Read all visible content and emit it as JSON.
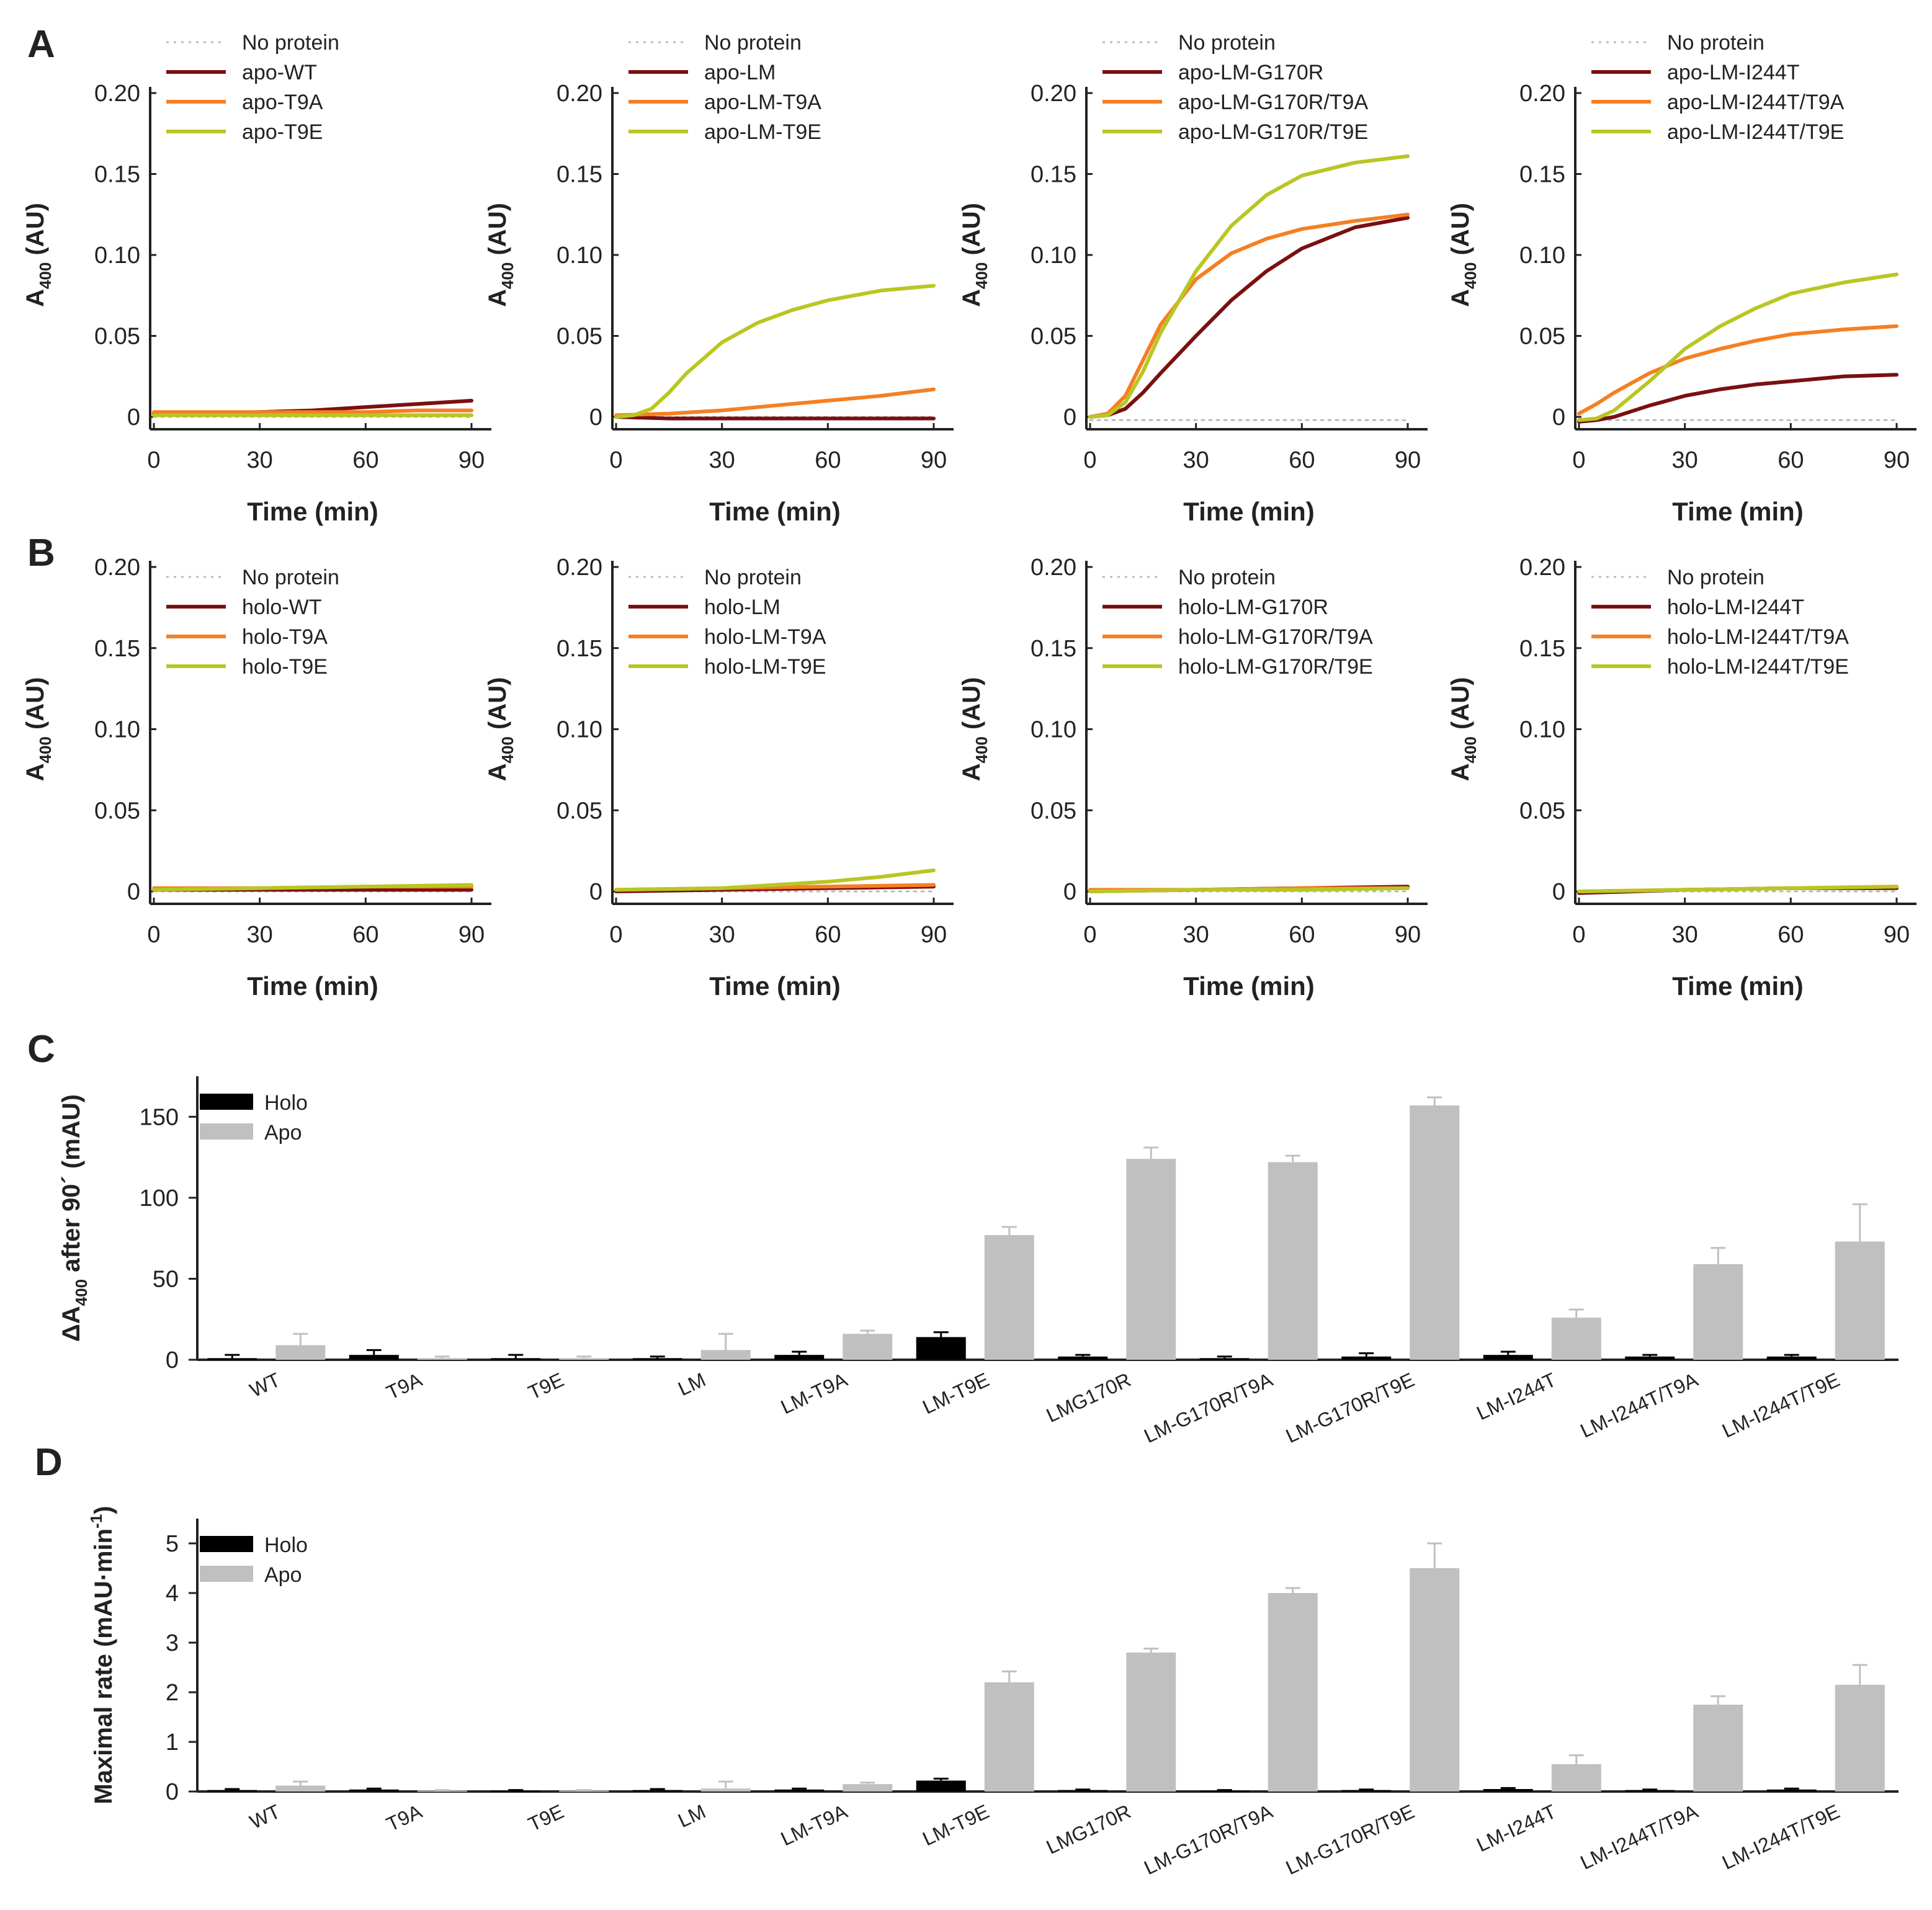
{
  "colors": {
    "no_protein": "#bbbbbb",
    "wt": "#7a1010",
    "t9a": "#f57f22",
    "t9e": "#b9c623",
    "holo": "#000000",
    "apo": "#c0c0c0",
    "axis": "#222222"
  },
  "chart_data": [
    {
      "type": "line",
      "panel": "A",
      "title": "",
      "xlabel": "Time (min)",
      "ylabel": "A400 (AU)",
      "xlim": [
        0,
        90
      ],
      "ylim": [
        0,
        0.2
      ],
      "xticks": [
        0,
        30,
        60,
        90
      ],
      "yticks": [
        {
          "v": 0,
          "label": "0"
        },
        {
          "v": 0.05,
          "label": "0.05"
        },
        {
          "v": 0.1,
          "label": "0.10"
        },
        {
          "v": 0.15,
          "label": "0.15"
        },
        {
          "v": 0.2,
          "label": "0.20"
        }
      ],
      "series": [
        {
          "name": "No protein",
          "x": [
            0,
            90
          ],
          "y": [
            0,
            0
          ]
        },
        {
          "name": "apo-WT",
          "x": [
            0,
            15,
            30,
            45,
            60,
            75,
            90
          ],
          "y": [
            0.002,
            0.002,
            0.003,
            0.004,
            0.006,
            0.008,
            0.01
          ]
        },
        {
          "name": "apo-T9A",
          "x": [
            0,
            15,
            30,
            45,
            60,
            75,
            90
          ],
          "y": [
            0.003,
            0.003,
            0.003,
            0.003,
            0.003,
            0.004,
            0.004
          ]
        },
        {
          "name": "apo-T9E",
          "x": [
            0,
            15,
            30,
            45,
            60,
            75,
            90
          ],
          "y": [
            0.001,
            0.001,
            0.001,
            0.001,
            0.001,
            0.001,
            0.001
          ]
        }
      ]
    },
    {
      "type": "line",
      "panel": "A",
      "title": "",
      "xlabel": "Time (min)",
      "ylabel": "A400 (AU)",
      "xlim": [
        0,
        90
      ],
      "ylim": [
        0,
        0.2
      ],
      "xticks": [
        0,
        30,
        60,
        90
      ],
      "yticks": [
        {
          "v": 0,
          "label": "0"
        },
        {
          "v": 0.05,
          "label": "0.05"
        },
        {
          "v": 0.1,
          "label": "0.10"
        },
        {
          "v": 0.15,
          "label": "0.15"
        },
        {
          "v": 0.2,
          "label": "0.20"
        }
      ],
      "series": [
        {
          "name": "No protein",
          "x": [
            0,
            90
          ],
          "y": [
            0,
            0
          ]
        },
        {
          "name": "apo-LM",
          "x": [
            0,
            15,
            30,
            45,
            60,
            75,
            90
          ],
          "y": [
            0,
            -0.001,
            -0.001,
            -0.001,
            -0.001,
            -0.001,
            -0.001
          ]
        },
        {
          "name": "apo-LM-T9A",
          "x": [
            0,
            15,
            30,
            45,
            60,
            75,
            90
          ],
          "y": [
            0.001,
            0.002,
            0.004,
            0.007,
            0.01,
            0.013,
            0.017
          ]
        },
        {
          "name": "apo-LM-T9E",
          "x": [
            0,
            5,
            10,
            15,
            20,
            30,
            40,
            50,
            60,
            75,
            90
          ],
          "y": [
            0,
            0.001,
            0.005,
            0.015,
            0.027,
            0.046,
            0.058,
            0.066,
            0.072,
            0.078,
            0.081
          ]
        }
      ]
    },
    {
      "type": "line",
      "panel": "A",
      "title": "",
      "xlabel": "Time (min)",
      "ylabel": "A400 (AU)",
      "xlim": [
        0,
        90
      ],
      "ylim": [
        0,
        0.2
      ],
      "xticks": [
        0,
        30,
        60,
        90
      ],
      "yticks": [
        {
          "v": 0,
          "label": "0"
        },
        {
          "v": 0.05,
          "label": "0.05"
        },
        {
          "v": 0.1,
          "label": "0.10"
        },
        {
          "v": 0.15,
          "label": "0.15"
        },
        {
          "v": 0.2,
          "label": "0.20"
        }
      ],
      "series": [
        {
          "name": "No protein",
          "x": [
            0,
            90
          ],
          "y": [
            -0.002,
            -0.002
          ]
        },
        {
          "name": "apo-LM-G170R",
          "x": [
            0,
            5,
            10,
            15,
            20,
            30,
            40,
            50,
            60,
            75,
            90
          ],
          "y": [
            0,
            0.001,
            0.005,
            0.015,
            0.027,
            0.05,
            0.072,
            0.09,
            0.104,
            0.117,
            0.123
          ]
        },
        {
          "name": "apo-LM-G170R/T9A",
          "x": [
            0,
            5,
            10,
            15,
            20,
            30,
            40,
            50,
            60,
            75,
            90
          ],
          "y": [
            0,
            0.002,
            0.013,
            0.035,
            0.057,
            0.085,
            0.101,
            0.11,
            0.116,
            0.121,
            0.125
          ]
        },
        {
          "name": "apo-LM-G170R/T9E",
          "x": [
            0,
            5,
            10,
            15,
            20,
            30,
            40,
            50,
            60,
            75,
            90
          ],
          "y": [
            0,
            0.001,
            0.009,
            0.028,
            0.052,
            0.09,
            0.118,
            0.137,
            0.149,
            0.157,
            0.161
          ]
        }
      ]
    },
    {
      "type": "line",
      "panel": "A",
      "title": "",
      "xlabel": "Time (min)",
      "ylabel": "A400 (AU)",
      "xlim": [
        0,
        90
      ],
      "ylim": [
        0,
        0.2
      ],
      "xticks": [
        0,
        30,
        60,
        90
      ],
      "yticks": [
        {
          "v": 0,
          "label": "0"
        },
        {
          "v": 0.05,
          "label": "0.05"
        },
        {
          "v": 0.1,
          "label": "0.10"
        },
        {
          "v": 0.15,
          "label": "0.15"
        },
        {
          "v": 0.2,
          "label": "0.20"
        }
      ],
      "series": [
        {
          "name": "No protein",
          "x": [
            0,
            90
          ],
          "y": [
            -0.002,
            -0.002
          ]
        },
        {
          "name": "apo-LM-I244T",
          "x": [
            0,
            5,
            10,
            20,
            30,
            40,
            50,
            60,
            75,
            90
          ],
          "y": [
            -0.003,
            -0.002,
            0,
            0.007,
            0.013,
            0.017,
            0.02,
            0.022,
            0.025,
            0.026
          ]
        },
        {
          "name": "apo-LM-I244T/T9A",
          "x": [
            0,
            5,
            10,
            20,
            30,
            40,
            50,
            60,
            75,
            90
          ],
          "y": [
            0.002,
            0.008,
            0.015,
            0.027,
            0.036,
            0.042,
            0.047,
            0.051,
            0.054,
            0.056
          ]
        },
        {
          "name": "apo-LM-I244T/T9E",
          "x": [
            0,
            5,
            10,
            20,
            30,
            40,
            50,
            60,
            75,
            90
          ],
          "y": [
            -0.002,
            -0.001,
            0.004,
            0.022,
            0.042,
            0.056,
            0.067,
            0.076,
            0.083,
            0.088
          ]
        }
      ]
    },
    {
      "type": "line",
      "panel": "B",
      "title": "",
      "xlabel": "Time (min)",
      "ylabel": "A400 (AU)",
      "xlim": [
        0,
        90
      ],
      "ylim": [
        0,
        0.2
      ],
      "xticks": [
        0,
        30,
        60,
        90
      ],
      "yticks": [
        {
          "v": 0,
          "label": "0"
        },
        {
          "v": 0.05,
          "label": "0.05"
        },
        {
          "v": 0.1,
          "label": "0.10"
        },
        {
          "v": 0.15,
          "label": "0.15"
        },
        {
          "v": 0.2,
          "label": "0.20"
        }
      ],
      "series": [
        {
          "name": "No protein",
          "x": [
            0,
            90
          ],
          "y": [
            0,
            0
          ]
        },
        {
          "name": "holo-WT",
          "x": [
            0,
            30,
            60,
            90
          ],
          "y": [
            0.001,
            0.001,
            0.001,
            0.001
          ]
        },
        {
          "name": "holo-T9A",
          "x": [
            0,
            30,
            60,
            90
          ],
          "y": [
            0.002,
            0.002,
            0.003,
            0.003
          ]
        },
        {
          "name": "holo-T9E",
          "x": [
            0,
            30,
            60,
            90
          ],
          "y": [
            0.001,
            0.002,
            0.003,
            0.004
          ]
        }
      ]
    },
    {
      "type": "line",
      "panel": "B",
      "title": "",
      "xlabel": "Time (min)",
      "ylabel": "A400 (AU)",
      "xlim": [
        0,
        90
      ],
      "ylim": [
        0,
        0.2
      ],
      "xticks": [
        0,
        30,
        60,
        90
      ],
      "yticks": [
        {
          "v": 0,
          "label": "0"
        },
        {
          "v": 0.05,
          "label": "0.05"
        },
        {
          "v": 0.1,
          "label": "0.10"
        },
        {
          "v": 0.15,
          "label": "0.15"
        },
        {
          "v": 0.2,
          "label": "0.20"
        }
      ],
      "series": [
        {
          "name": "No protein",
          "x": [
            0,
            90
          ],
          "y": [
            0,
            0
          ]
        },
        {
          "name": "holo-LM",
          "x": [
            0,
            30,
            60,
            90
          ],
          "y": [
            0,
            0.001,
            0.002,
            0.003
          ]
        },
        {
          "name": "holo-LM-T9A",
          "x": [
            0,
            30,
            60,
            90
          ],
          "y": [
            0.001,
            0.002,
            0.003,
            0.004
          ]
        },
        {
          "name": "holo-LM-T9E",
          "x": [
            0,
            30,
            45,
            60,
            75,
            90
          ],
          "y": [
            0.001,
            0.002,
            0.004,
            0.006,
            0.009,
            0.013
          ]
        }
      ]
    },
    {
      "type": "line",
      "panel": "B",
      "title": "",
      "xlabel": "Time (min)",
      "ylabel": "A400 (AU)",
      "xlim": [
        0,
        90
      ],
      "ylim": [
        0,
        0.2
      ],
      "xticks": [
        0,
        30,
        60,
        90
      ],
      "yticks": [
        {
          "v": 0,
          "label": "0"
        },
        {
          "v": 0.05,
          "label": "0.05"
        },
        {
          "v": 0.1,
          "label": "0.10"
        },
        {
          "v": 0.15,
          "label": "0.15"
        },
        {
          "v": 0.2,
          "label": "0.20"
        }
      ],
      "series": [
        {
          "name": "No protein",
          "x": [
            0,
            90
          ],
          "y": [
            0,
            0
          ]
        },
        {
          "name": "holo-LM-G170R",
          "x": [
            0,
            30,
            60,
            90
          ],
          "y": [
            0,
            0.001,
            0.002,
            0.003
          ]
        },
        {
          "name": "holo-LM-G170R/T9A",
          "x": [
            0,
            30,
            60,
            90
          ],
          "y": [
            0.001,
            0.001,
            0.002,
            0.002
          ]
        },
        {
          "name": "holo-LM-G170R/T9E",
          "x": [
            0,
            30,
            60,
            90
          ],
          "y": [
            0,
            0.001,
            0.001,
            0.002
          ]
        }
      ]
    },
    {
      "type": "line",
      "panel": "B",
      "title": "",
      "xlabel": "Time (min)",
      "ylabel": "A400 (AU)",
      "xlim": [
        0,
        90
      ],
      "ylim": [
        0,
        0.2
      ],
      "xticks": [
        0,
        30,
        60,
        90
      ],
      "yticks": [
        {
          "v": 0,
          "label": "0"
        },
        {
          "v": 0.05,
          "label": "0.05"
        },
        {
          "v": 0.1,
          "label": "0.10"
        },
        {
          "v": 0.15,
          "label": "0.15"
        },
        {
          "v": 0.2,
          "label": "0.20"
        }
      ],
      "series": [
        {
          "name": "No protein",
          "x": [
            0,
            90
          ],
          "y": [
            0,
            0
          ]
        },
        {
          "name": "holo-LM-I244T",
          "x": [
            0,
            30,
            60,
            90
          ],
          "y": [
            -0.001,
            0.001,
            0.002,
            0.002
          ]
        },
        {
          "name": "holo-LM-I244T/T9A",
          "x": [
            0,
            30,
            60,
            90
          ],
          "y": [
            0,
            0.001,
            0.002,
            0.003
          ]
        },
        {
          "name": "holo-LM-I244T/T9E",
          "x": [
            0,
            30,
            60,
            90
          ],
          "y": [
            0,
            0.001,
            0.002,
            0.003
          ]
        }
      ]
    },
    {
      "type": "bar",
      "panel": "C",
      "title": "",
      "xlabel": "",
      "ylabel": "ΔA400 after 90´ (mAU)",
      "ylim": [
        0,
        175
      ],
      "yticks": [
        0,
        50,
        100,
        150
      ],
      "categories": [
        "WT",
        "T9A",
        "T9E",
        "LM",
        "LM-T9A",
        "LM-T9E",
        "LMG170R",
        "LM-G170R/T9A",
        "LM-G170R/T9E",
        "LM-I244T",
        "LM-I244T/T9A",
        "LM-I244T/T9E"
      ],
      "series": [
        {
          "name": "Holo",
          "values": [
            1,
            3,
            1,
            1,
            3,
            14,
            2,
            1,
            2,
            3,
            2,
            2
          ],
          "errors": [
            2,
            3,
            2,
            1,
            2,
            3,
            1,
            1,
            2,
            2,
            1,
            1
          ]
        },
        {
          "name": "Apo",
          "values": [
            9,
            1,
            1,
            6,
            16,
            77,
            124,
            122,
            157,
            26,
            59,
            73
          ],
          "errors": [
            7,
            1,
            1,
            10,
            2,
            5,
            7,
            4,
            5,
            5,
            10,
            23
          ]
        }
      ]
    },
    {
      "type": "bar",
      "panel": "D",
      "title": "",
      "xlabel": "",
      "ylabel": "Maximal rate (mAU·min-1)",
      "ylim": [
        0,
        5.5
      ],
      "yticks": [
        0,
        1,
        2,
        3,
        4,
        5
      ],
      "categories": [
        "WT",
        "T9A",
        "T9E",
        "LM",
        "LM-T9A",
        "LM-T9E",
        "LMG170R",
        "LM-G170R/T9A",
        "LM-G170R/T9E",
        "LM-I244T",
        "LM-I244T/T9A",
        "LM-I244T/T9E"
      ],
      "series": [
        {
          "name": "Holo",
          "values": [
            0.03,
            0.04,
            0.02,
            0.03,
            0.04,
            0.22,
            0.03,
            0.02,
            0.03,
            0.05,
            0.03,
            0.04
          ],
          "errors": [
            0.02,
            0.02,
            0.01,
            0.02,
            0.02,
            0.04,
            0.01,
            0.01,
            0.01,
            0.02,
            0.01,
            0.02
          ]
        },
        {
          "name": "Apo",
          "values": [
            0.12,
            0.02,
            0.02,
            0.06,
            0.15,
            2.2,
            2.8,
            4.0,
            4.5,
            0.55,
            1.75,
            2.15
          ],
          "errors": [
            0.08,
            0.01,
            0.01,
            0.14,
            0.03,
            0.22,
            0.08,
            0.1,
            0.5,
            0.18,
            0.17,
            0.4
          ]
        }
      ]
    }
  ]
}
